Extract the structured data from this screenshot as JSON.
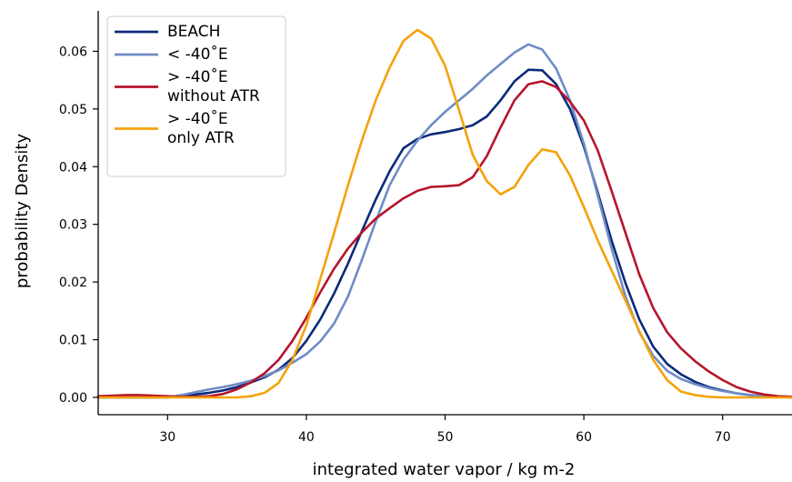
{
  "chart_data": {
    "type": "line",
    "title": "",
    "xlabel": "integrated water vapor / kg m-2",
    "ylabel": "probability Density",
    "xlim": [
      25,
      75
    ],
    "ylim": [
      -0.003,
      0.067
    ],
    "xticks": [
      30,
      40,
      50,
      60,
      70
    ],
    "xtick_labels": [
      "30",
      "40",
      "50",
      "60",
      "70"
    ],
    "yticks": [
      0.0,
      0.01,
      0.02,
      0.03,
      0.04,
      0.05,
      0.06
    ],
    "ytick_labels": [
      "0.00",
      "0.01",
      "0.02",
      "0.03",
      "0.04",
      "0.05",
      "0.06"
    ],
    "grid": false,
    "legend_position": "top-left",
    "series": [
      {
        "name": "BEACH",
        "legend_lines": [
          "BEACH"
        ],
        "color": "#0a2a7a",
        "x": [
          25,
          26,
          27,
          28,
          29,
          30,
          31,
          32,
          33,
          34,
          35,
          36,
          37,
          38,
          39,
          40,
          41,
          42,
          43,
          44,
          45,
          46,
          47,
          48,
          49,
          50,
          51,
          52,
          53,
          54,
          55,
          56,
          57,
          58,
          59,
          60,
          61,
          62,
          63,
          64,
          65,
          66,
          67,
          68,
          69,
          70,
          71,
          72,
          73,
          74,
          75
        ],
        "y": [
          0.0,
          0.0,
          0.0,
          0.0,
          0.0,
          0.0,
          0.0002,
          0.0005,
          0.0008,
          0.0012,
          0.0018,
          0.0026,
          0.0035,
          0.0048,
          0.0068,
          0.0098,
          0.0135,
          0.018,
          0.0232,
          0.0288,
          0.0343,
          0.0392,
          0.0432,
          0.0448,
          0.0456,
          0.046,
          0.0465,
          0.0472,
          0.0487,
          0.0515,
          0.0548,
          0.0568,
          0.0567,
          0.0543,
          0.05,
          0.0435,
          0.0355,
          0.0272,
          0.0198,
          0.0135,
          0.0088,
          0.0058,
          0.004,
          0.0027,
          0.0018,
          0.0012,
          0.0007,
          0.0004,
          0.0002,
          0.0001,
          0.0
        ]
      },
      {
        "name": "< -40˚E",
        "legend_lines": [
          "< -40˚E"
        ],
        "color": "#6f8cc6",
        "x": [
          25,
          26,
          27,
          28,
          29,
          30,
          31,
          32,
          33,
          34,
          35,
          36,
          37,
          38,
          39,
          40,
          41,
          42,
          43,
          44,
          45,
          46,
          47,
          48,
          49,
          50,
          51,
          52,
          53,
          54,
          55,
          56,
          57,
          58,
          59,
          60,
          61,
          62,
          63,
          64,
          65,
          66,
          67,
          68,
          69,
          70,
          71,
          72,
          73,
          74,
          75
        ],
        "y": [
          0.0,
          0.0,
          0.0,
          0.0,
          0.0,
          0.0,
          0.0004,
          0.0009,
          0.0014,
          0.0018,
          0.0023,
          0.0029,
          0.0037,
          0.0047,
          0.006,
          0.0075,
          0.0097,
          0.0128,
          0.0175,
          0.0238,
          0.0305,
          0.0368,
          0.0412,
          0.0445,
          0.0472,
          0.0495,
          0.0515,
          0.0535,
          0.0558,
          0.0578,
          0.0598,
          0.0612,
          0.0603,
          0.057,
          0.0515,
          0.044,
          0.035,
          0.0258,
          0.0175,
          0.0113,
          0.0072,
          0.0046,
          0.0032,
          0.0023,
          0.0016,
          0.0011,
          0.0007,
          0.0004,
          0.0002,
          0.0001,
          0.0
        ]
      },
      {
        "name": "> -40˚E without ATR",
        "legend_lines": [
          "> -40˚E",
          "without ATR"
        ],
        "color": "#b5152b",
        "x": [
          25,
          26,
          27,
          28,
          29,
          30,
          31,
          32,
          33,
          34,
          35,
          36,
          37,
          38,
          39,
          40,
          41,
          42,
          43,
          44,
          45,
          46,
          47,
          48,
          49,
          50,
          51,
          52,
          53,
          54,
          55,
          56,
          57,
          58,
          59,
          60,
          61,
          62,
          63,
          64,
          65,
          66,
          67,
          68,
          69,
          70,
          71,
          72,
          73,
          74,
          75
        ],
        "y": [
          0.0002,
          0.0003,
          0.0004,
          0.0004,
          0.0003,
          0.0002,
          0.0001,
          0.0001,
          0.0002,
          0.0006,
          0.0014,
          0.0026,
          0.0042,
          0.0065,
          0.0098,
          0.0138,
          0.0182,
          0.0223,
          0.0258,
          0.0286,
          0.031,
          0.0328,
          0.0345,
          0.0358,
          0.0365,
          0.0366,
          0.0368,
          0.0382,
          0.0418,
          0.0468,
          0.0515,
          0.0543,
          0.0548,
          0.0538,
          0.0513,
          0.048,
          0.0428,
          0.0358,
          0.0285,
          0.0213,
          0.0155,
          0.0113,
          0.0085,
          0.0063,
          0.0045,
          0.003,
          0.0018,
          0.001,
          0.0005,
          0.0002,
          0.0001
        ]
      },
      {
        "name": "> -40˚E only ATR",
        "legend_lines": [
          "> -40˚E",
          "only ATR"
        ],
        "color": "#f5a20a",
        "x": [
          25,
          26,
          27,
          28,
          29,
          30,
          31,
          32,
          33,
          34,
          35,
          36,
          37,
          38,
          39,
          40,
          41,
          42,
          43,
          44,
          45,
          46,
          47,
          48,
          49,
          50,
          51,
          52,
          53,
          54,
          55,
          56,
          57,
          58,
          59,
          60,
          61,
          62,
          63,
          64,
          65,
          66,
          67,
          68,
          69,
          70,
          71,
          72,
          73,
          74,
          75
        ],
        "y": [
          0.0,
          0.0,
          0.0,
          0.0,
          0.0,
          0.0,
          0.0,
          0.0,
          0.0,
          0.0,
          0.0,
          0.0002,
          0.0008,
          0.0025,
          0.0065,
          0.0125,
          0.0205,
          0.0285,
          0.0368,
          0.0445,
          0.0515,
          0.0572,
          0.0618,
          0.0637,
          0.0622,
          0.0575,
          0.0498,
          0.042,
          0.0375,
          0.0352,
          0.0365,
          0.0403,
          0.043,
          0.0425,
          0.0385,
          0.033,
          0.0272,
          0.022,
          0.0168,
          0.0115,
          0.0065,
          0.003,
          0.001,
          0.0004,
          0.0001,
          0.0,
          0.0,
          0.0,
          0.0,
          0.0,
          0.0
        ]
      }
    ]
  }
}
